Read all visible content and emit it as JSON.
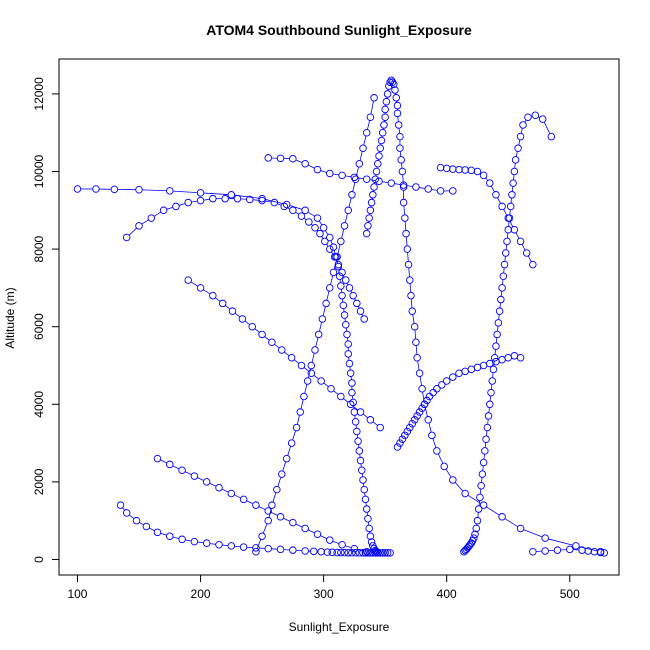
{
  "chart_data": {
    "type": "scatter",
    "title": "ATOM4 Southbound Sunlight_Exposure",
    "xlabel": "Sunlight_Exposure",
    "ylabel": "Altitude (m)",
    "xlim": [
      85,
      540
    ],
    "ylim": [
      -400,
      12900
    ],
    "xticks": [
      "100",
      "200",
      "300",
      "400",
      "500"
    ],
    "yticks": [
      "0",
      "2000",
      "4000",
      "6000",
      "8000",
      "10000",
      "12000"
    ],
    "grid": false,
    "legend": "none",
    "color": "#0000ff",
    "marker": "open-circle",
    "series": [
      {
        "name": "",
        "x": [
          525,
          505,
          480,
          460,
          445,
          430,
          415,
          405,
          398,
          392,
          388,
          385,
          382,
          380,
          378,
          376,
          375,
          374,
          372,
          371,
          370,
          369,
          368,
          367,
          366,
          365,
          365,
          364,
          363,
          362,
          362,
          361,
          360,
          360,
          359,
          358,
          357,
          356,
          355,
          354,
          353,
          352,
          351,
          350,
          350,
          349,
          348,
          347,
          346,
          345,
          344,
          343,
          342,
          341,
          340,
          339,
          338,
          337,
          336,
          335
        ],
        "y": [
          200,
          350,
          550,
          800,
          1100,
          1400,
          1700,
          2050,
          2400,
          2800,
          3200,
          3600,
          4000,
          4400,
          4800,
          5200,
          5600,
          6000,
          6400,
          6800,
          7200,
          7600,
          8000,
          8400,
          8800,
          9200,
          9600,
          10000,
          10300,
          10600,
          10900,
          11200,
          11500,
          11700,
          11900,
          12100,
          12250,
          12300,
          12350,
          12300,
          12200,
          12000,
          11800,
          11600,
          11400,
          11200,
          11000,
          10800,
          10600,
          10400,
          10200,
          10000,
          9800,
          9600,
          9400,
          9200,
          9000,
          8800,
          8600,
          8400
        ]
      },
      {
        "name": "",
        "x": [
          100,
          115,
          130,
          150,
          175,
          200,
          225,
          250,
          270,
          285,
          295,
          300,
          305,
          308,
          310,
          312,
          313,
          314,
          315,
          316,
          317,
          318,
          319,
          320,
          320,
          321,
          322,
          323,
          323,
          324,
          325,
          326,
          327,
          328,
          329,
          330,
          331,
          332,
          333,
          334,
          335,
          336,
          337,
          338,
          339,
          340,
          341,
          342,
          343,
          344
        ],
        "y": [
          9550,
          9550,
          9540,
          9530,
          9500,
          9450,
          9400,
          9300,
          9150,
          9000,
          8800,
          8550,
          8300,
          8050,
          7800,
          7550,
          7300,
          7050,
          6800,
          6550,
          6300,
          6050,
          5800,
          5550,
          5300,
          5050,
          4800,
          4550,
          4300,
          4050,
          3800,
          3550,
          3300,
          3050,
          2800,
          2550,
          2300,
          2050,
          1800,
          1550,
          1300,
          1050,
          800,
          600,
          450,
          350,
          280,
          230,
          200,
          180
        ]
      },
      {
        "name": "",
        "x": [
          485,
          478,
          472,
          466,
          462,
          460,
          458,
          456,
          455,
          454,
          453,
          452,
          451,
          450,
          449,
          448,
          447,
          446,
          445,
          444,
          443,
          442,
          441,
          440,
          439,
          438,
          437,
          436,
          435,
          434,
          433,
          432,
          431,
          430,
          429,
          428,
          427,
          426,
          425,
          424,
          423,
          422,
          421,
          420,
          419,
          418,
          417,
          416,
          415,
          414
        ],
        "y": [
          10900,
          11350,
          11450,
          11400,
          11200,
          10900,
          10600,
          10300,
          10000,
          9700,
          9400,
          9100,
          8800,
          8500,
          8200,
          7900,
          7600,
          7300,
          7000,
          6700,
          6400,
          6100,
          5800,
          5500,
          5200,
          4900,
          4600,
          4300,
          4000,
          3700,
          3400,
          3100,
          2800,
          2500,
          2200,
          1900,
          1600,
          1300,
          1000,
          800,
          650,
          550,
          480,
          420,
          380,
          340,
          300,
          260,
          230,
          200
        ]
      },
      {
        "name": "",
        "x": [
          135,
          140,
          148,
          156,
          165,
          175,
          185,
          195,
          205,
          215,
          225,
          235,
          245,
          255,
          265,
          275,
          285,
          292,
          298,
          303,
          307,
          311,
          314,
          317,
          320,
          323,
          326,
          329,
          332,
          334,
          336,
          338,
          340,
          342,
          344,
          346,
          348,
          350,
          352,
          354
        ],
        "y": [
          1400,
          1200,
          1000,
          850,
          700,
          600,
          520,
          460,
          420,
          380,
          350,
          320,
          300,
          280,
          260,
          240,
          220,
          210,
          200,
          190,
          185,
          180,
          178,
          176,
          175,
          174,
          173,
          172,
          172,
          171,
          171,
          170,
          170,
          170,
          170,
          170,
          170,
          170,
          170,
          170
        ]
      },
      {
        "name": "",
        "x": [
          140,
          150,
          160,
          170,
          180,
          190,
          200,
          210,
          220,
          230,
          240,
          250,
          260,
          268,
          275,
          282,
          288,
          293,
          297,
          301,
          305,
          309,
          312,
          315,
          318,
          321,
          324,
          327,
          330,
          333
        ],
        "y": [
          8300,
          8600,
          8800,
          9000,
          9100,
          9200,
          9250,
          9300,
          9300,
          9300,
          9280,
          9250,
          9200,
          9100,
          9000,
          8850,
          8700,
          8550,
          8400,
          8200,
          8000,
          7800,
          7600,
          7400,
          7200,
          7000,
          6800,
          6600,
          6400,
          6200
        ]
      },
      {
        "name": "",
        "x": [
          245,
          250,
          255,
          258,
          262,
          266,
          270,
          274,
          278,
          281,
          284,
          287,
          290,
          293,
          296,
          299,
          302,
          305,
          308,
          311,
          314,
          317,
          320,
          323,
          326,
          329,
          332,
          335,
          338,
          341
        ],
        "y": [
          200,
          600,
          1000,
          1400,
          1800,
          2200,
          2600,
          3000,
          3400,
          3800,
          4200,
          4600,
          5000,
          5400,
          5800,
          6200,
          6600,
          7000,
          7400,
          7800,
          8200,
          8600,
          9000,
          9400,
          9800,
          10200,
          10600,
          11000,
          11400,
          11900
        ]
      },
      {
        "name": "",
        "x": [
          460,
          455,
          450,
          445,
          440,
          435,
          430,
          425,
          420,
          415,
          410,
          405,
          400,
          396,
          392,
          389,
          386,
          384,
          382,
          380,
          378,
          376,
          374,
          372,
          370,
          368,
          366,
          364,
          362,
          360
        ],
        "y": [
          5200,
          5250,
          5200,
          5150,
          5100,
          5050,
          5000,
          4950,
          4900,
          4850,
          4800,
          4700,
          4600,
          4500,
          4400,
          4300,
          4200,
          4100,
          4000,
          3900,
          3800,
          3700,
          3600,
          3500,
          3400,
          3300,
          3200,
          3100,
          3000,
          2900
        ]
      },
      {
        "name": "",
        "x": [
          190,
          200,
          210,
          218,
          226,
          234,
          242,
          250,
          258,
          266,
          274,
          282,
          290,
          298,
          306,
          314,
          322,
          330,
          338,
          346
        ],
        "y": [
          7200,
          7000,
          6800,
          6600,
          6400,
          6200,
          6000,
          5800,
          5600,
          5400,
          5200,
          5000,
          4800,
          4600,
          4400,
          4200,
          4000,
          3800,
          3600,
          3400
        ]
      },
      {
        "name": "",
        "x": [
          395,
          400,
          405,
          410,
          415,
          420,
          425,
          430,
          435,
          440,
          445,
          450,
          455,
          460,
          465,
          470
        ],
        "y": [
          10100,
          10080,
          10060,
          10050,
          10040,
          10030,
          10000,
          9900,
          9700,
          9400,
          9100,
          8800,
          8500,
          8200,
          7900,
          7600
        ]
      },
      {
        "name": "",
        "x": [
          255,
          265,
          275,
          285,
          295,
          305,
          315,
          325,
          335,
          345,
          355,
          365,
          375,
          385,
          395,
          405
        ],
        "y": [
          10350,
          10340,
          10330,
          10200,
          10050,
          9950,
          9900,
          9850,
          9800,
          9750,
          9700,
          9650,
          9600,
          9550,
          9500,
          9500
        ]
      },
      {
        "name": "",
        "x": [
          165,
          175,
          185,
          195,
          205,
          215,
          225,
          235,
          245,
          255,
          265,
          275,
          285,
          295,
          305,
          315,
          325,
          335
        ],
        "y": [
          2600,
          2450,
          2300,
          2150,
          2000,
          1850,
          1700,
          1550,
          1400,
          1250,
          1100,
          950,
          800,
          650,
          500,
          380,
          280,
          200
        ]
      },
      {
        "name": "",
        "x": [
          470,
          480,
          490,
          500,
          510,
          515,
          520,
          525,
          528
        ],
        "y": [
          200,
          220,
          240,
          260,
          240,
          220,
          200,
          180,
          170
        ]
      }
    ]
  }
}
